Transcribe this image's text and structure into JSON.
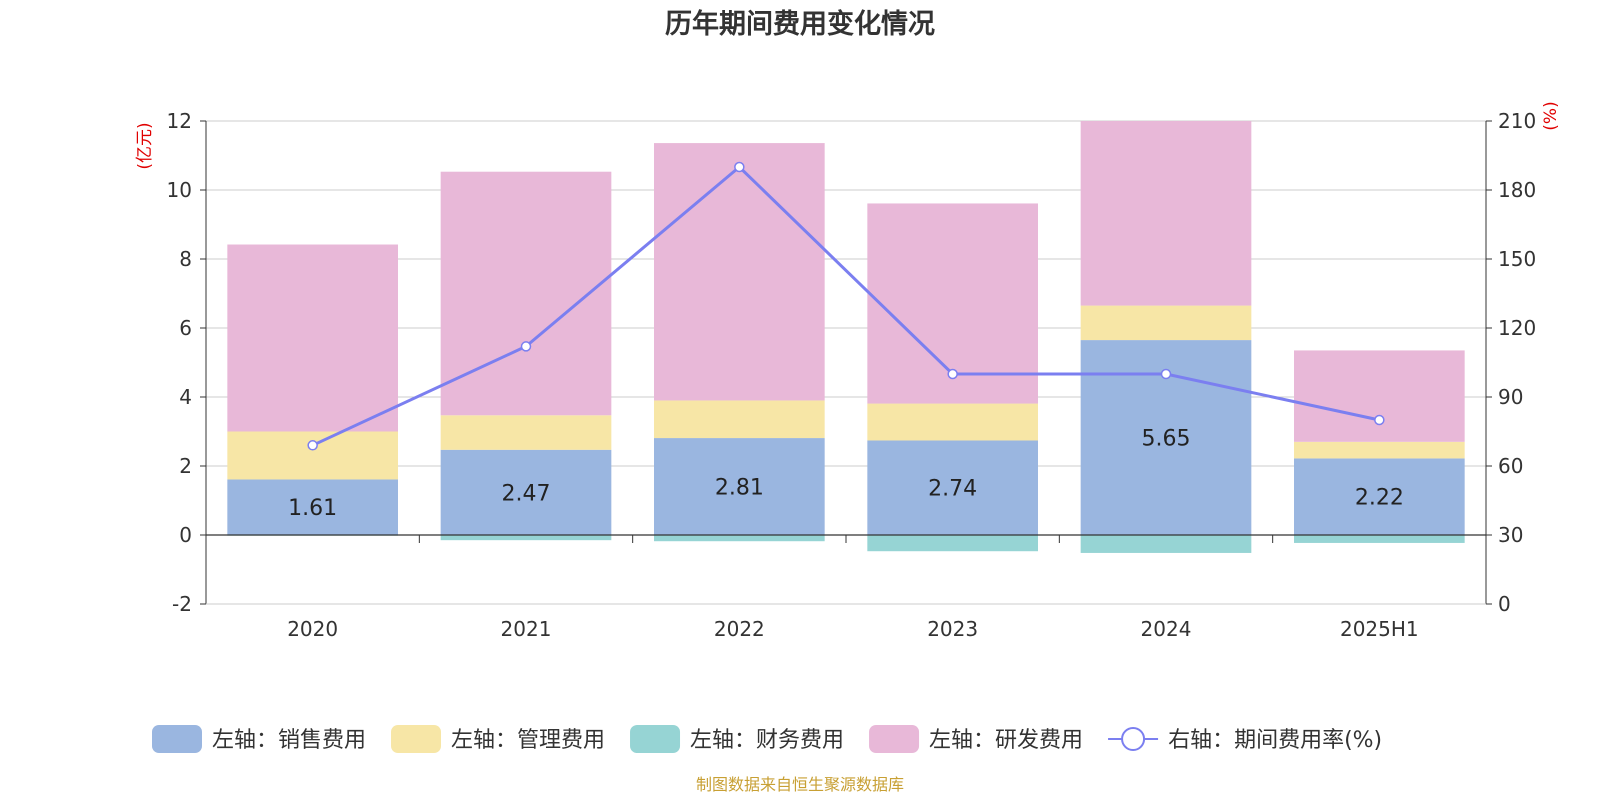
{
  "chart_data": {
    "type": "bar",
    "stacked": true,
    "title": "历年期间费用变化情况",
    "categories": [
      "2020",
      "2021",
      "2022",
      "2023",
      "2024",
      "2025H1"
    ],
    "left_axis": {
      "unit": "(亿元)",
      "ylim": [
        -2,
        12
      ],
      "ticks": [
        -2,
        0,
        2,
        4,
        6,
        8,
        10,
        12
      ]
    },
    "right_axis": {
      "unit": "(%)",
      "ylim": [
        0,
        210
      ],
      "ticks": [
        0,
        30,
        60,
        90,
        120,
        150,
        180,
        210
      ]
    },
    "series": [
      {
        "name": "左轴：销售费用",
        "color": "#9ab6e0",
        "values": [
          1.61,
          2.47,
          2.81,
          2.74,
          5.65,
          2.22
        ],
        "labels": [
          "1.61",
          "2.47",
          "2.81",
          "2.74",
          "5.65",
          "2.22"
        ]
      },
      {
        "name": "左轴：管理费用",
        "color": "#f7e6a6",
        "values": [
          1.39,
          1.0,
          1.09,
          1.07,
          1.0,
          0.48
        ]
      },
      {
        "name": "左轴：财务费用",
        "color": "#96d4d4",
        "values": [
          -0.02,
          -0.15,
          -0.18,
          -0.47,
          -0.52,
          -0.23
        ]
      },
      {
        "name": "左轴：研发费用",
        "color": "#e8b8d8",
        "values": [
          5.42,
          7.06,
          7.46,
          5.8,
          5.35,
          2.65
        ]
      }
    ],
    "line": {
      "name": "右轴：期间费用率(%)",
      "color": "#7b7ff0",
      "values": [
        69,
        112,
        190,
        100,
        100,
        80
      ]
    },
    "source": "制图数据来自恒生聚源数据库"
  }
}
